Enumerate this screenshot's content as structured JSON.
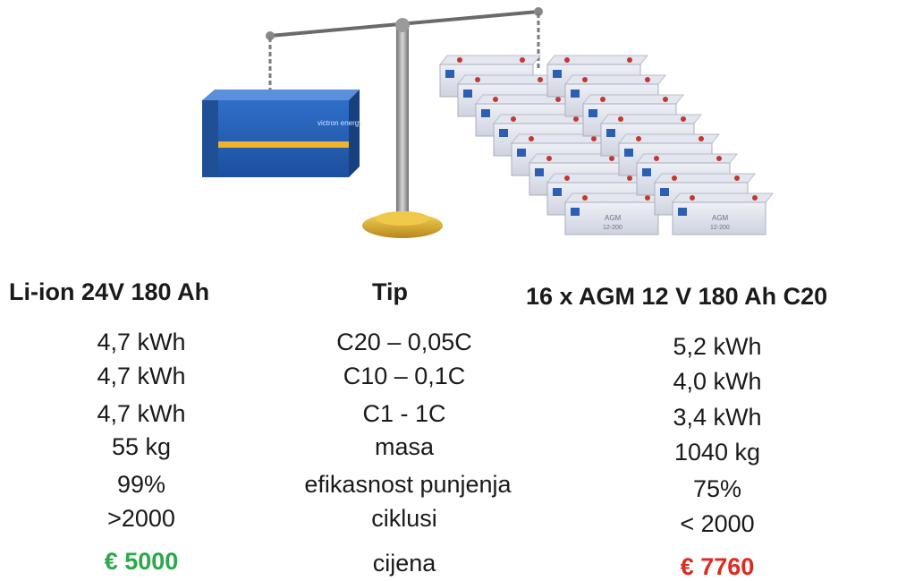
{
  "left": {
    "header": "Li-ion 24V 180 Ah",
    "values": [
      "4,7 kWh",
      "4,7 kWh",
      "4,7 kWh",
      "55 kg",
      "99%",
      ">2000"
    ],
    "price": "€ 5000",
    "price_color": "#2aa84a"
  },
  "middle": {
    "header": "Tip",
    "labels": [
      "C20 – 0,05C",
      "C10 – 0,1C",
      "C1  - 1C",
      "masa",
      "efikasnost punjenja",
      "ciklusi",
      "cijena"
    ]
  },
  "right": {
    "header": "16 x AGM 12 V 180 Ah C20",
    "values": [
      "5,2 kWh",
      "4,0 kWh",
      "3,4 kWh",
      "1040 kg",
      "75%",
      "< 2000"
    ],
    "price": "€ 7760",
    "price_color": "#e02a1f"
  },
  "illustration": {
    "liion_brand": "victron energy",
    "agm_label": "AGM",
    "agm_model": "12-200"
  }
}
